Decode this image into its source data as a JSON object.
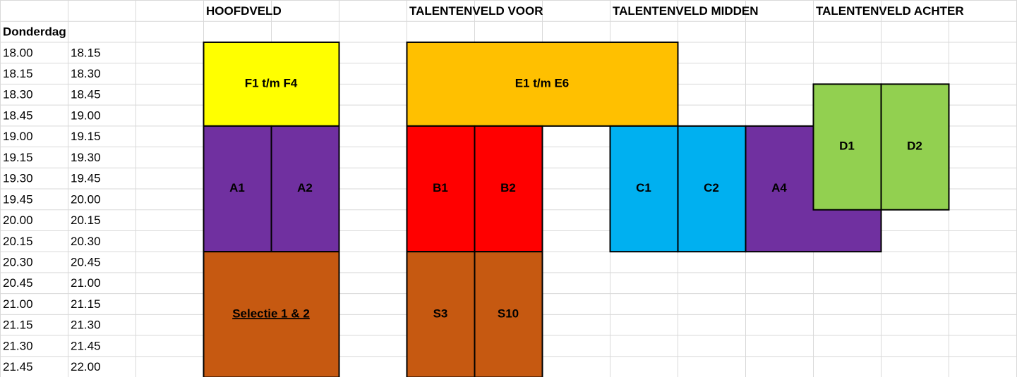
{
  "fields": [
    "HOOFDVELD",
    "TALENTENVELD VOOR",
    "TALENTENVELD MIDDEN",
    "TALENTENVELD ACHTER"
  ],
  "day": "Donderdag",
  "times": [
    [
      "18.00",
      "18.15"
    ],
    [
      "18.15",
      "18.30"
    ],
    [
      "18.30",
      "18.45"
    ],
    [
      "18.45",
      "19.00"
    ],
    [
      "19.00",
      "19.15"
    ],
    [
      "19.15",
      "19.30"
    ],
    [
      "19.30",
      "19.45"
    ],
    [
      "19.45",
      "20.00"
    ],
    [
      "20.00",
      "20.15"
    ],
    [
      "20.15",
      "20.30"
    ],
    [
      "20.30",
      "20.45"
    ],
    [
      "20.45",
      "21.00"
    ],
    [
      "21.00",
      "21.15"
    ],
    [
      "21.15",
      "21.30"
    ],
    [
      "21.30",
      "21.45"
    ],
    [
      "21.45",
      "22.00"
    ]
  ],
  "blocks": [
    "F1 t/m F4",
    "A1",
    "A2",
    "Selectie 1 & 2",
    "E1 t/m E6",
    "B1",
    "B2",
    "S3",
    "S10",
    "C1",
    "C2",
    "A4",
    "D1",
    "D2"
  ]
}
